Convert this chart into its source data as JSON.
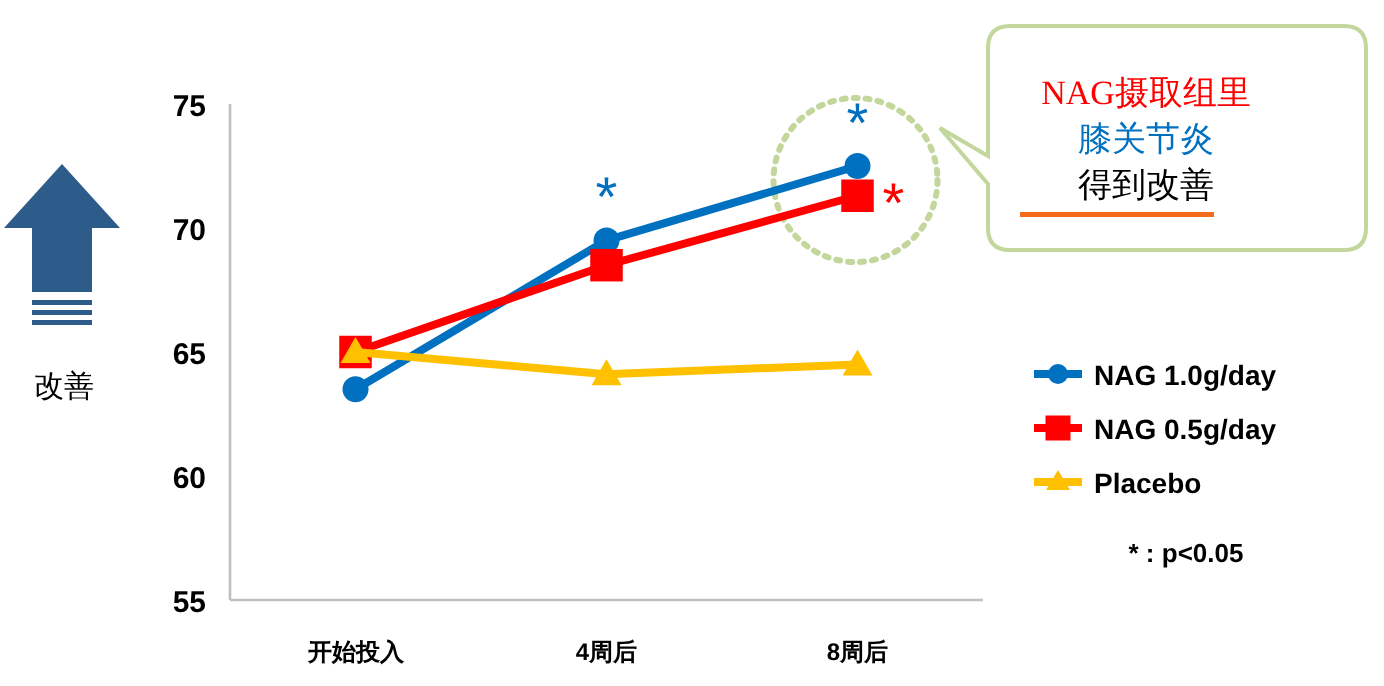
{
  "chart_data": {
    "type": "line",
    "categories": [
      "开始投入",
      "4周后",
      "8周后"
    ],
    "ylabel": "改善",
    "ylim": [
      55,
      75
    ],
    "yticks": [
      55,
      60,
      65,
      70,
      75
    ],
    "series": [
      {
        "name": "NAG 1.0g/day",
        "color": "#0070c0",
        "marker": "circle",
        "values": [
          63.5,
          69.5,
          72.5
        ]
      },
      {
        "name": "NAG 0.5g/day",
        "color": "#ff0000",
        "marker": "square",
        "values": [
          65,
          68.5,
          71.3
        ]
      },
      {
        "name": "Placebo",
        "color": "#ffc000",
        "marker": "triangle",
        "values": [
          65,
          64.1,
          64.5
        ]
      }
    ],
    "annotations": [
      "*",
      "*",
      "*",
      "NAG摄取组里",
      "膝关节炎",
      "得到改善",
      "* : p<0.05"
    ],
    "grid": false,
    "legend": "right"
  }
}
